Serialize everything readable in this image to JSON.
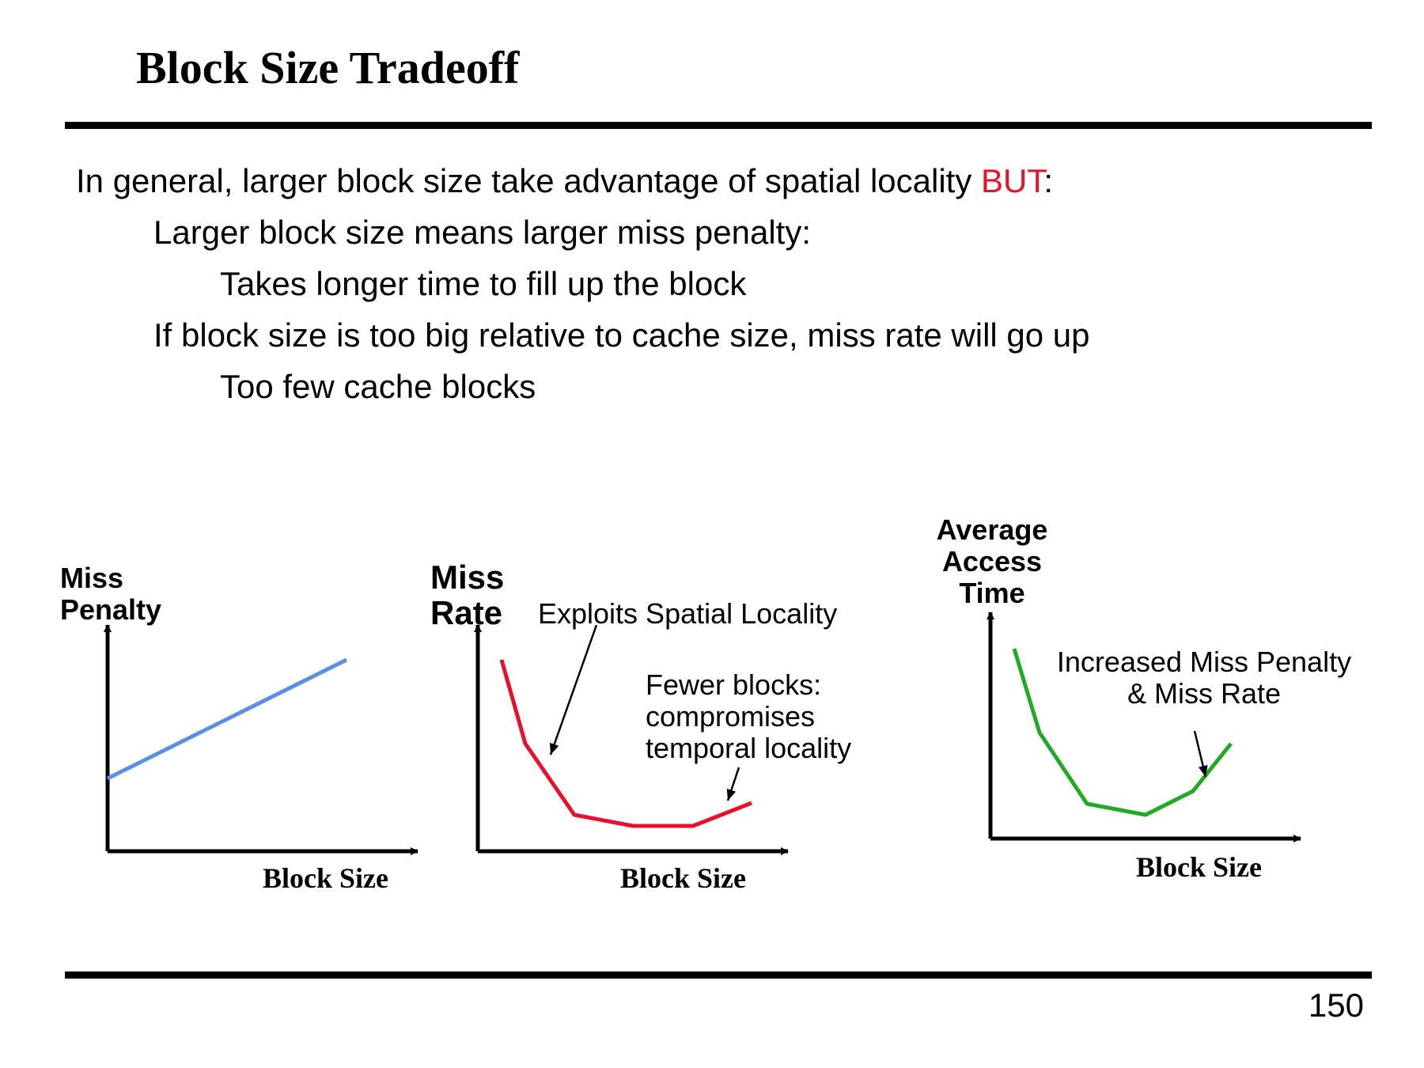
{
  "title": "Block Size Tradeoff",
  "bullets": {
    "l1_pre": "In general, larger block size take advantage of spatial locality ",
    "l1_but": "BUT",
    "l1_post": ":",
    "l2": "Larger block size means larger miss penalty:",
    "l3": "Takes longer time to fill up the block",
    "l4": "If block size is too big relative to cache size, miss rate will go up",
    "l5": "Too few cache blocks"
  },
  "colors": {
    "accent": "#e8112d",
    "miss_penalty_line": "#5b8fe6",
    "miss_rate_line": "#e8112d",
    "access_time_line": "#22aa22"
  },
  "graphs": {
    "miss_penalty": {
      "y_label_1": "Miss",
      "y_label_2": "Penalty",
      "x_label": "Block Size"
    },
    "miss_rate": {
      "y_label_1": "Miss",
      "y_label_2": "Rate",
      "x_label": "Block Size",
      "annotation_spatial": "Exploits Spatial Locality",
      "annotation_fewer_1": "Fewer blocks:",
      "annotation_fewer_2": "compromises",
      "annotation_fewer_3": "temporal locality"
    },
    "access_time": {
      "y_label_1": "Average",
      "y_label_2": "Access",
      "y_label_3": "Time",
      "x_label": "Block Size",
      "annotation_1": "Increased Miss Penalty",
      "annotation_2": "& Miss Rate"
    }
  },
  "page_number": "150"
}
